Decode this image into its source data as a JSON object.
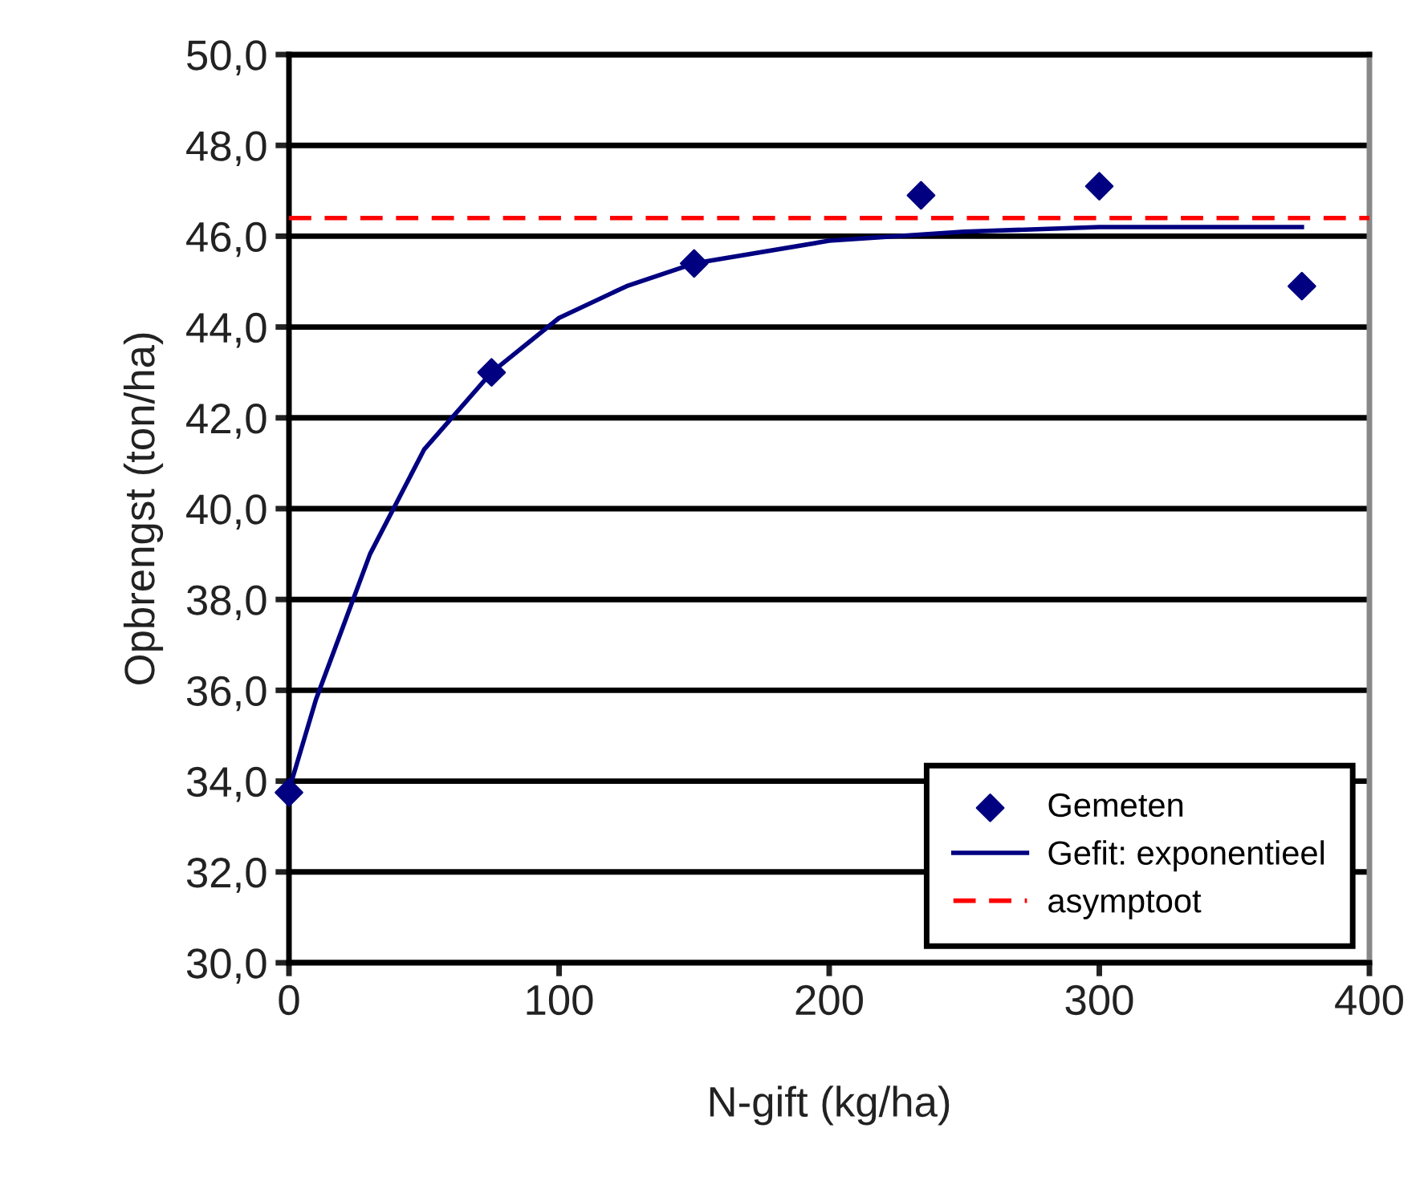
{
  "chart_data": {
    "type": "scatter",
    "xlabel": "N-gift (kg/ha)",
    "ylabel": "Opbrengst (ton/ha)",
    "xlim": [
      0,
      400
    ],
    "xticks": [
      0,
      100,
      200,
      300,
      400
    ],
    "ylim": [
      30,
      50
    ],
    "yticks": [
      {
        "value": 30,
        "label": "30,0"
      },
      {
        "value": 32,
        "label": "32,0"
      },
      {
        "value": 34,
        "label": "34,0"
      },
      {
        "value": 36,
        "label": "36,0"
      },
      {
        "value": 38,
        "label": "38,0"
      },
      {
        "value": 40,
        "label": "40,0"
      },
      {
        "value": 42,
        "label": "42,0"
      },
      {
        "value": 44,
        "label": "44,0"
      },
      {
        "value": 46,
        "label": "46,0"
      },
      {
        "value": 48,
        "label": "48,0"
      },
      {
        "value": 50,
        "label": "50,0"
      }
    ],
    "grid": "y",
    "legend": "bottom right",
    "series": [
      {
        "name": "Gemeten",
        "type": "scatter",
        "marker": "diamond",
        "color": "#000080",
        "x": [
          0,
          75,
          150,
          234,
          300,
          375
        ],
        "values": [
          33.75,
          43.0,
          45.4,
          46.9,
          47.1,
          44.9
        ]
      },
      {
        "name": "Gefit: exponentieel",
        "type": "line",
        "marker": "none",
        "line_style": "solid",
        "color": "#000080",
        "x": [
          0,
          10,
          20,
          30,
          50,
          75,
          100,
          125,
          150,
          200,
          250,
          300,
          375
        ],
        "values": [
          33.8,
          35.8,
          37.4,
          39.0,
          41.3,
          43.0,
          44.2,
          44.9,
          45.4,
          45.9,
          46.1,
          46.2,
          46.2
        ]
      },
      {
        "name": "asymptoot",
        "type": "line",
        "marker": "none",
        "line_style": "dashed",
        "color": "#ff0000",
        "x": [
          0,
          400
        ],
        "values": [
          46.4,
          46.4
        ]
      }
    ]
  }
}
